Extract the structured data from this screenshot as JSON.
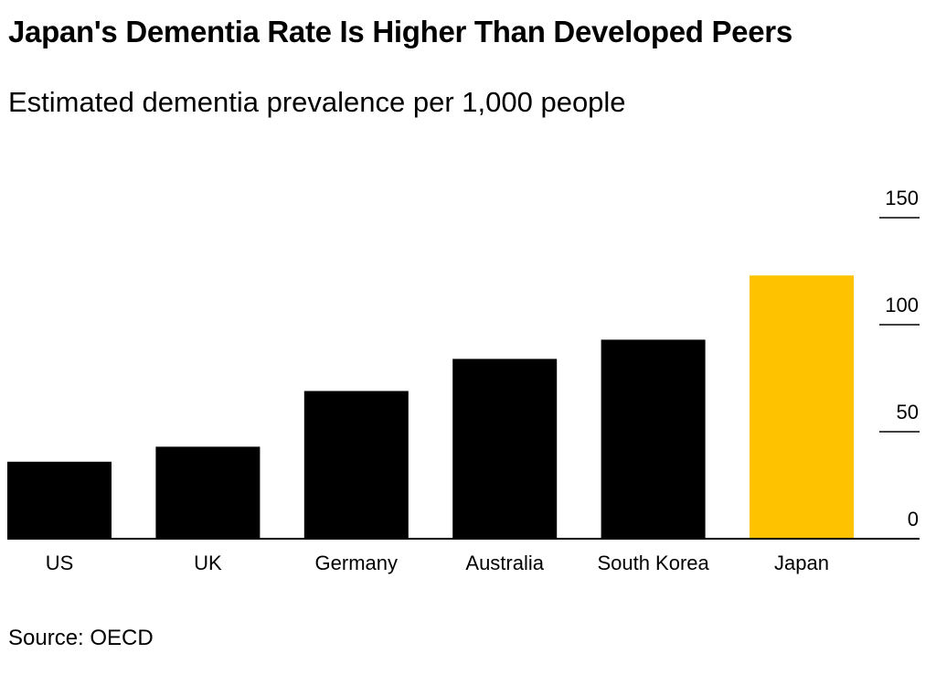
{
  "chart_data": {
    "type": "bar",
    "title": "Japan's Dementia Rate Is Higher Than Developed Peers",
    "subtitle": "Estimated dementia prevalence per 1,000 people",
    "categories": [
      "US",
      "UK",
      "Germany",
      "Australia",
      "South Korea",
      "Japan"
    ],
    "values": [
      36,
      43,
      69,
      84,
      93,
      123
    ],
    "highlight": "Japan",
    "colors": {
      "default": "#000000",
      "highlight": "#FFC200"
    },
    "xlabel": "",
    "ylabel": "",
    "ylim": [
      0,
      150
    ],
    "yticks": [
      0,
      50,
      100,
      150
    ],
    "ytick_labels": [
      "0",
      "50",
      "100",
      "150"
    ],
    "y_axis_side": "right",
    "source": "Source: OECD"
  }
}
